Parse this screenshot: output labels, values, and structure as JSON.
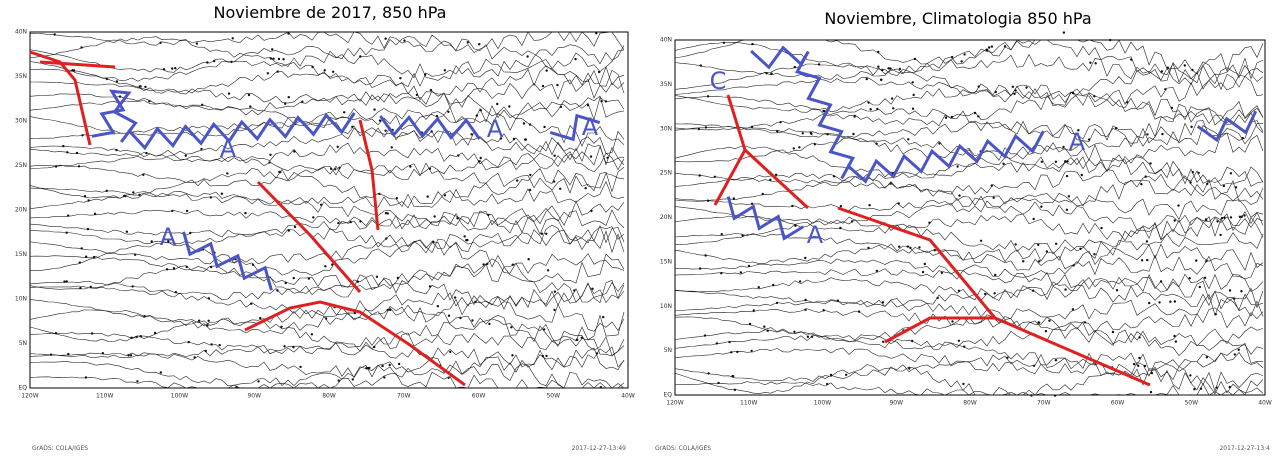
{
  "panels": [
    {
      "title": "Noviembre de 2017, 850 hPa",
      "y_labels": [
        "40N",
        "35N",
        "30N",
        "25N",
        "20N",
        "15N",
        "10N",
        "5N",
        "EQ"
      ],
      "x_labels": [
        "120W",
        "110W",
        "100W",
        "90W",
        "80W",
        "70W",
        "60W",
        "50W",
        "40W"
      ],
      "annotations": [
        "A",
        "A",
        "A",
        "A"
      ],
      "footer_left": "GrADS: COLA/IGES",
      "footer_right": "2017-12-27-13:49"
    },
    {
      "title": "Noviembre, Climatologia 850 hPa",
      "y_labels": [
        "40N",
        "35N",
        "30N",
        "25N",
        "20N",
        "15N",
        "10N",
        "5N",
        "EQ"
      ],
      "x_labels": [
        "120W",
        "110W",
        "100W",
        "90W",
        "80W",
        "70W",
        "60W",
        "50W",
        "40W"
      ],
      "annotations": [
        "C",
        "A",
        "A"
      ],
      "footer_left": "GrADS: COLA/IGES",
      "footer_right": "2017-12-27-13:4"
    }
  ]
}
